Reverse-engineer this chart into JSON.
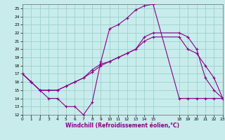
{
  "xlabel": "Windchill (Refroidissement éolien,°C)",
  "bg_color": "#c8ecec",
  "grid_color": "#9ed0d0",
  "line_color": "#880088",
  "xlim": [
    0,
    23
  ],
  "ylim": [
    12,
    25.5
  ],
  "ytick_vals": [
    12,
    13,
    14,
    15,
    16,
    17,
    18,
    19,
    20,
    21,
    22,
    23,
    24,
    25
  ],
  "xtick_vals": [
    0,
    1,
    2,
    3,
    4,
    5,
    6,
    7,
    8,
    9,
    10,
    11,
    12,
    13,
    14,
    15,
    18,
    19,
    20,
    21,
    22,
    23
  ],
  "line1_x": [
    0,
    1,
    2,
    3,
    4,
    5,
    6,
    7,
    8,
    9,
    10,
    11,
    12,
    13,
    14,
    15,
    18,
    19,
    20,
    21,
    22,
    23
  ],
  "line1_y": [
    17,
    16,
    15,
    14,
    14,
    13,
    13,
    12,
    13.5,
    18.5,
    22.5,
    23,
    23.8,
    24.8,
    25.3,
    25.5,
    14,
    14,
    14,
    14,
    14,
    14
  ],
  "line2_x": [
    0,
    1,
    2,
    3,
    4,
    5,
    6,
    7,
    8,
    9,
    10,
    11,
    12,
    13,
    14,
    15,
    18,
    19,
    20,
    21,
    22,
    23
  ],
  "line2_y": [
    17,
    16,
    15,
    15,
    15,
    15.5,
    16,
    16.5,
    17.5,
    18.2,
    18.5,
    19,
    19.5,
    20,
    21.5,
    22,
    22,
    21.5,
    20,
    16.5,
    15,
    14
  ],
  "line3_x": [
    0,
    1,
    2,
    3,
    4,
    5,
    6,
    7,
    8,
    9,
    10,
    11,
    12,
    13,
    14,
    15,
    18,
    19,
    20,
    21,
    22,
    23
  ],
  "line3_y": [
    17,
    16,
    15,
    15,
    15,
    15.5,
    16,
    16.5,
    17.2,
    18,
    18.5,
    19,
    19.5,
    20,
    21,
    21.5,
    21.5,
    20,
    19.5,
    18,
    16.5,
    14
  ]
}
